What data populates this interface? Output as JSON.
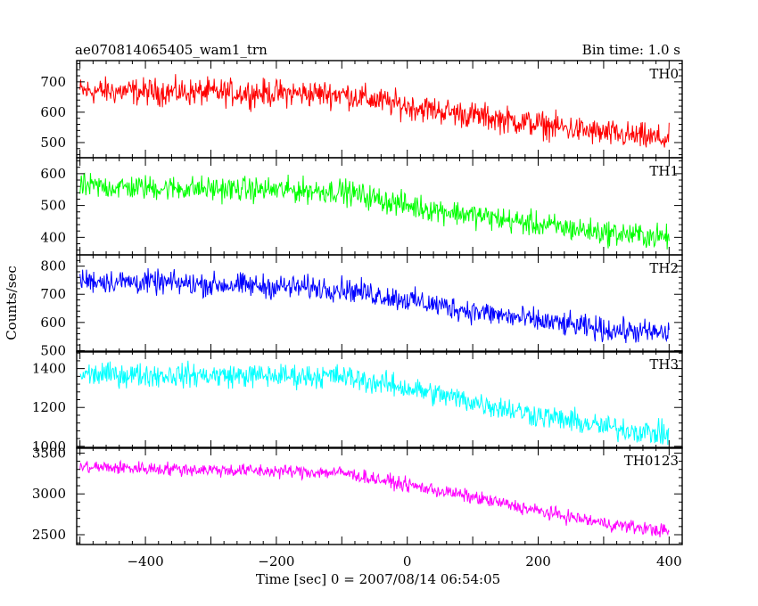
{
  "header": {
    "title": "ae070814065405_wam1_trn",
    "bin_time": "Bin time: 1.0 s"
  },
  "axes": {
    "xlabel": "Time [sec] 0 = 2007/08/14 06:54:05",
    "ylabel": "Counts/sec"
  },
  "chart_data": {
    "type": "line",
    "title": "ae070814065405_wam1_trn",
    "subtitle": "Bin time: 1.0 s",
    "xlabel": "Time [sec] 0 = 2007/08/14 06:54:05",
    "ylabel": "Counts/sec",
    "xlim": [
      -505,
      420
    ],
    "x_ticks": [
      -400,
      -200,
      0,
      200,
      400
    ],
    "x_range": [
      -500,
      400
    ],
    "bin_time_s": 1.0,
    "grid": false,
    "series": [
      {
        "name": "TH0",
        "color": "#ff0000",
        "ylim": [
          450,
          770
        ],
        "y_ticks": [
          500,
          600,
          700
        ],
        "trend_x": [
          -500,
          -100,
          0,
          100,
          200,
          300,
          400
        ],
        "trend_y": [
          670,
          660,
          620,
          590,
          560,
          530,
          510
        ],
        "noise_amplitude": 40
      },
      {
        "name": "TH1",
        "color": "#00ff00",
        "ylim": [
          345,
          650
        ],
        "y_ticks": [
          400,
          500,
          600
        ],
        "trend_x": [
          -500,
          -100,
          0,
          100,
          200,
          300,
          400
        ],
        "trend_y": [
          560,
          545,
          500,
          470,
          440,
          415,
          400
        ],
        "noise_amplitude": 35
      },
      {
        "name": "TH2",
        "color": "#0000ff",
        "ylim": [
          495,
          840
        ],
        "y_ticks": [
          500,
          600,
          700,
          800
        ],
        "trend_x": [
          -500,
          -100,
          0,
          100,
          200,
          300,
          400
        ],
        "trend_y": [
          750,
          720,
          680,
          640,
          605,
          575,
          560
        ],
        "noise_amplitude": 38
      },
      {
        "name": "TH3",
        "color": "#00ffff",
        "ylim": [
          990,
          1490
        ],
        "y_ticks": [
          1000,
          1200,
          1400
        ],
        "trend_x": [
          -500,
          -100,
          0,
          100,
          200,
          300,
          400
        ],
        "trend_y": [
          1370,
          1360,
          1300,
          1230,
          1160,
          1100,
          1060
        ],
        "noise_amplitude": 55
      },
      {
        "name": "TH0123",
        "color": "#ff00ff",
        "ylim": [
          2380,
          3570
        ],
        "y_ticks": [
          2500,
          3000,
          3500
        ],
        "trend_x": [
          -500,
          -100,
          0,
          100,
          200,
          300,
          400
        ],
        "trend_y": [
          3330,
          3260,
          3110,
          2960,
          2790,
          2640,
          2540
        ],
        "noise_amplitude": 75
      }
    ]
  }
}
